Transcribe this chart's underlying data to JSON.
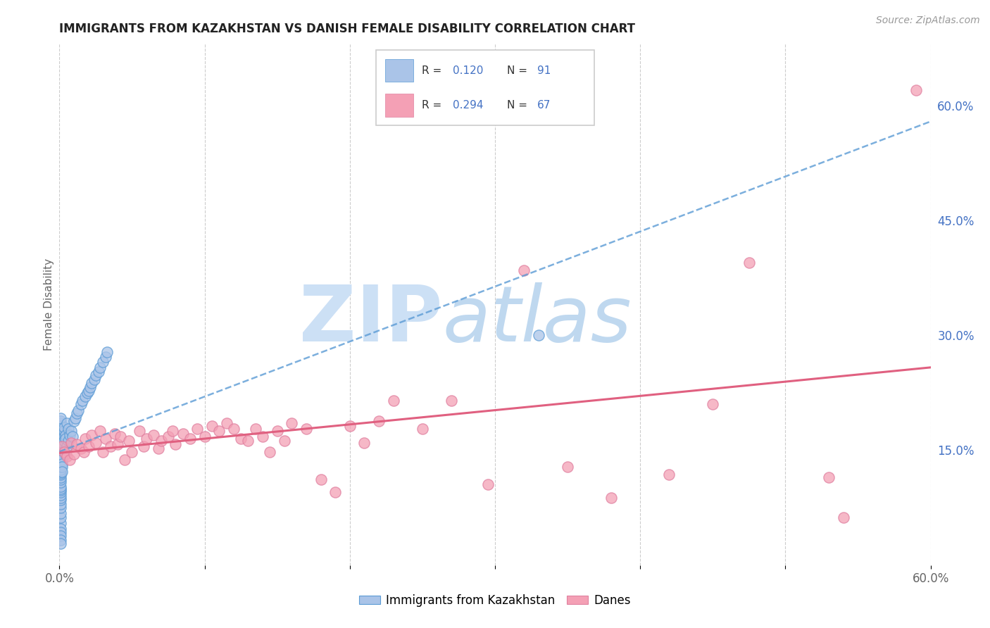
{
  "title": "IMMIGRANTS FROM KAZAKHSTAN VS DANISH FEMALE DISABILITY CORRELATION CHART",
  "source": "Source: ZipAtlas.com",
  "ylabel": "Female Disability",
  "x_min": 0.0,
  "x_max": 0.6,
  "y_min": 0.0,
  "y_max": 0.68,
  "x_ticks": [
    0.0,
    0.1,
    0.2,
    0.3,
    0.4,
    0.5,
    0.6
  ],
  "x_tick_labels_show": [
    "0.0%",
    "",
    "",
    "",
    "",
    "",
    "60.0%"
  ],
  "y_ticks_right": [
    0.15,
    0.3,
    0.45,
    0.6
  ],
  "y_tick_labels_right": [
    "15.0%",
    "30.0%",
    "45.0%",
    "60.0%"
  ],
  "r_kaz": 0.12,
  "n_kaz": 91,
  "r_danes": 0.294,
  "n_danes": 67,
  "color_kaz": "#aac4e8",
  "color_danes": "#f4a0b5",
  "color_kaz_line": "#5b9bd5",
  "color_danes_line": "#e06080",
  "color_kaz_dark": "#4472c4",
  "watermark_zip_color": "#cce0f5",
  "watermark_atlas_color": "#b8d4ee",
  "legend_label_kaz": "Immigrants from Kazakhstan",
  "legend_label_danes": "Danes",
  "kaz_x": [
    0.001,
    0.001,
    0.001,
    0.001,
    0.001,
    0.001,
    0.001,
    0.001,
    0.001,
    0.001,
    0.001,
    0.001,
    0.001,
    0.001,
    0.001,
    0.001,
    0.001,
    0.001,
    0.001,
    0.001,
    0.001,
    0.001,
    0.001,
    0.001,
    0.001,
    0.001,
    0.001,
    0.001,
    0.001,
    0.001,
    0.001,
    0.001,
    0.001,
    0.001,
    0.001,
    0.001,
    0.001,
    0.001,
    0.001,
    0.001,
    0.001,
    0.001,
    0.001,
    0.001,
    0.001,
    0.001,
    0.001,
    0.001,
    0.001,
    0.001,
    0.002,
    0.002,
    0.002,
    0.002,
    0.002,
    0.002,
    0.002,
    0.002,
    0.003,
    0.003,
    0.003,
    0.003,
    0.004,
    0.004,
    0.004,
    0.005,
    0.005,
    0.006,
    0.006,
    0.007,
    0.008,
    0.009,
    0.01,
    0.011,
    0.012,
    0.013,
    0.015,
    0.016,
    0.018,
    0.019,
    0.02,
    0.021,
    0.022,
    0.024,
    0.025,
    0.027,
    0.028,
    0.03,
    0.032,
    0.033,
    0.33
  ],
  "kaz_y": [
    0.055,
    0.062,
    0.068,
    0.075,
    0.08,
    0.085,
    0.088,
    0.092,
    0.095,
    0.098,
    0.1,
    0.103,
    0.108,
    0.112,
    0.115,
    0.118,
    0.12,
    0.122,
    0.125,
    0.128,
    0.13,
    0.132,
    0.135,
    0.138,
    0.14,
    0.143,
    0.145,
    0.148,
    0.15,
    0.152,
    0.155,
    0.158,
    0.16,
    0.162,
    0.165,
    0.168,
    0.17,
    0.172,
    0.175,
    0.178,
    0.18,
    0.182,
    0.185,
    0.188,
    0.192,
    0.048,
    0.043,
    0.038,
    0.033,
    0.028,
    0.155,
    0.158,
    0.148,
    0.142,
    0.138,
    0.132,
    0.128,
    0.122,
    0.168,
    0.162,
    0.175,
    0.18,
    0.17,
    0.165,
    0.145,
    0.185,
    0.155,
    0.178,
    0.162,
    0.17,
    0.175,
    0.168,
    0.188,
    0.192,
    0.198,
    0.202,
    0.21,
    0.215,
    0.22,
    0.225,
    0.228,
    0.232,
    0.238,
    0.242,
    0.248,
    0.252,
    0.258,
    0.265,
    0.272,
    0.278,
    0.3
  ],
  "danes_x": [
    0.002,
    0.003,
    0.005,
    0.007,
    0.008,
    0.01,
    0.012,
    0.015,
    0.017,
    0.018,
    0.02,
    0.022,
    0.025,
    0.028,
    0.03,
    0.032,
    0.035,
    0.038,
    0.04,
    0.042,
    0.045,
    0.048,
    0.05,
    0.055,
    0.058,
    0.06,
    0.065,
    0.068,
    0.07,
    0.075,
    0.078,
    0.08,
    0.085,
    0.09,
    0.095,
    0.1,
    0.105,
    0.11,
    0.115,
    0.12,
    0.125,
    0.13,
    0.135,
    0.14,
    0.145,
    0.15,
    0.155,
    0.16,
    0.17,
    0.18,
    0.19,
    0.2,
    0.21,
    0.22,
    0.23,
    0.25,
    0.27,
    0.295,
    0.32,
    0.35,
    0.38,
    0.42,
    0.45,
    0.475,
    0.53,
    0.54,
    0.59
  ],
  "danes_y": [
    0.155,
    0.148,
    0.142,
    0.138,
    0.16,
    0.145,
    0.158,
    0.152,
    0.148,
    0.165,
    0.155,
    0.17,
    0.16,
    0.175,
    0.148,
    0.165,
    0.155,
    0.172,
    0.158,
    0.168,
    0.138,
    0.162,
    0.148,
    0.175,
    0.155,
    0.165,
    0.17,
    0.152,
    0.162,
    0.168,
    0.175,
    0.158,
    0.172,
    0.165,
    0.178,
    0.168,
    0.182,
    0.175,
    0.185,
    0.178,
    0.165,
    0.162,
    0.178,
    0.168,
    0.148,
    0.175,
    0.162,
    0.185,
    0.178,
    0.112,
    0.095,
    0.182,
    0.16,
    0.188,
    0.215,
    0.178,
    0.215,
    0.105,
    0.385,
    0.128,
    0.088,
    0.118,
    0.21,
    0.395,
    0.115,
    0.062,
    0.62
  ]
}
